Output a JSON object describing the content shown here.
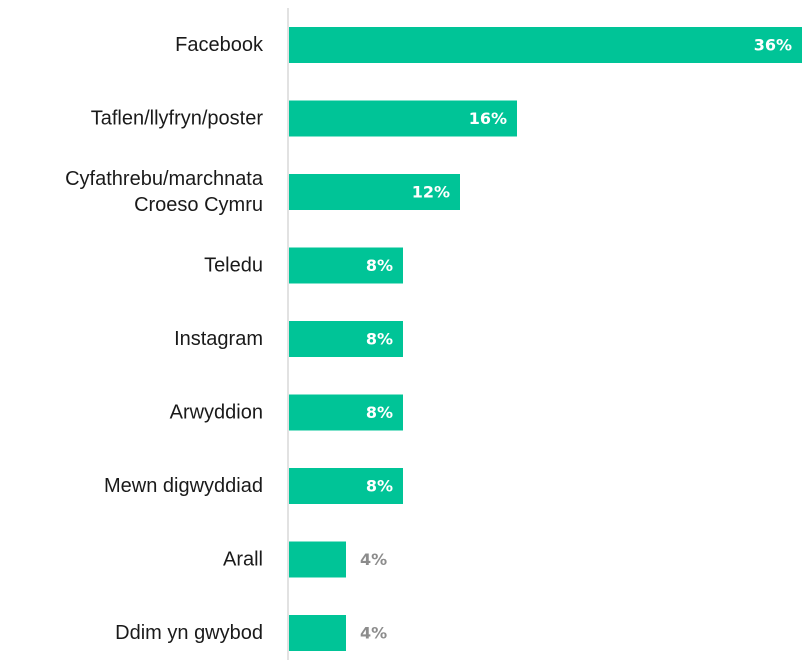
{
  "chart_data": {
    "type": "bar",
    "orientation": "horizontal",
    "categories": [
      [
        "Facebook"
      ],
      [
        "Taflen/llyfryn/poster"
      ],
      [
        "Cyfathrebu/marchnata",
        "Croeso Cymru"
      ],
      [
        "Teledu"
      ],
      [
        "Instagram"
      ],
      [
        "Arwyddion"
      ],
      [
        "Mewn digwyddiad"
      ],
      [
        "Arall"
      ],
      [
        "Ddim yn gwybod"
      ]
    ],
    "values": [
      36,
      16,
      12,
      8,
      8,
      8,
      8,
      4,
      4
    ],
    "value_labels": [
      "36%",
      "16%",
      "12%",
      "8%",
      "8%",
      "8%",
      "8%",
      "4%",
      "4%"
    ],
    "xlim": [
      0,
      36
    ],
    "grid": false,
    "colors": {
      "bar": "#00c497",
      "label_inside": "#ffffff",
      "label_outside": "#8c8c8c",
      "axis": "#d9d9d9"
    }
  }
}
